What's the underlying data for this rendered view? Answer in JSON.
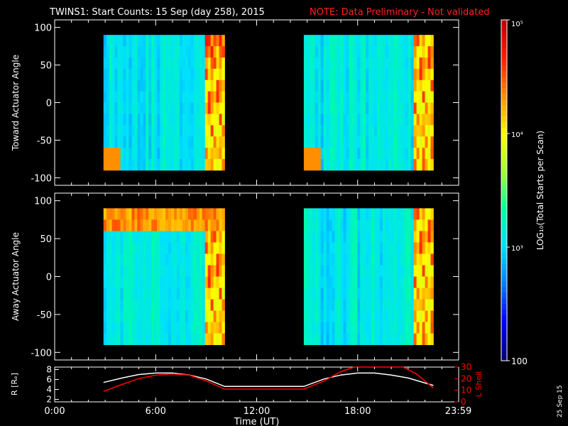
{
  "header": {
    "title": "TWINS1: Start Counts: 15 Sep (day 258), 2015",
    "note": "NOTE: Data Preliminary - Not validated"
  },
  "stamp": "25 Sep 15",
  "chart_data": [
    {
      "type": "heatmap",
      "ylabel": "Toward Actuator Angle",
      "ylim": [
        -110,
        110
      ],
      "yticks": [
        "-100",
        "-50",
        "0",
        "50",
        "100"
      ],
      "xlim_hours": [
        0,
        24
      ],
      "coverage_hours": [
        [
          2.9,
          10.1
        ],
        [
          14.8,
          22.5
        ]
      ],
      "angle_range": [
        -90,
        90
      ],
      "notes": "Mostly ~10^3 counts (cyan/blue), high (orange/red) near 8.9-10.1 h and 22.0-22.5 h; enhancement near -90 deg at start of each pass"
    },
    {
      "type": "heatmap",
      "ylabel": "Away Actuator Angle",
      "ylim": [
        -110,
        110
      ],
      "yticks": [
        "-100",
        "-50",
        "0",
        "50",
        "100"
      ],
      "xlim_hours": [
        0,
        24
      ],
      "coverage_hours": [
        [
          2.9,
          10.1
        ],
        [
          14.8,
          22.5
        ]
      ],
      "angle_range": [
        -90,
        90
      ],
      "notes": "High counts band near +75 deg in first pass; orange/red near 8.9-10.1 h and 20.8-22.5 h"
    },
    {
      "type": "colorbar",
      "title": "LOG₁₀(Total Starts per Scan)",
      "scale": "log",
      "range": [
        100,
        100000
      ],
      "tick_labels": [
        "100",
        "10³",
        "10⁴",
        "10⁵"
      ],
      "tick_values": [
        100,
        1000,
        10000,
        100000
      ],
      "colors": [
        "#00007f",
        "#0000ff",
        "#0080ff",
        "#00e0ff",
        "#00ffa0",
        "#a0ff30",
        "#ffff00",
        "#ff9000",
        "#ff2000",
        "#c00000"
      ]
    },
    {
      "type": "line",
      "xlabel": "Time (UT)",
      "x_tick_labels": [
        "0:00",
        "6:00",
        "12:00",
        "18:00",
        "23:59"
      ],
      "x_tick_hours": [
        0,
        6,
        12,
        18,
        23.98
      ],
      "left_axis": {
        "label": "R [Rₑ]",
        "ylim": [
          1.5,
          8.5
        ],
        "ticks": [
          "2",
          "4",
          "6",
          "8"
        ]
      },
      "right_axis": {
        "label": "L Shell",
        "ylim": [
          0,
          30
        ],
        "ticks": [
          "0",
          "10",
          "20",
          "30"
        ],
        "color": "#ff0000"
      },
      "series": [
        {
          "axis": "left",
          "color": "#ffffff",
          "x": [
            2.9,
            4,
            5,
            6,
            7,
            8,
            9,
            10.1,
            14.8,
            16,
            17,
            18,
            19,
            20,
            21,
            22.5
          ],
          "y": [
            5.4,
            6.3,
            7.0,
            7.3,
            7.3,
            6.9,
            6.1,
            4.6,
            4.6,
            6.1,
            6.9,
            7.3,
            7.3,
            6.9,
            6.3,
            4.8
          ]
        },
        {
          "axis": "right",
          "color": "#ff0000",
          "x": [
            2.9,
            4,
            5,
            6,
            7,
            8,
            9,
            10.1,
            14.8,
            16,
            17,
            17.8,
            20.7,
            21.5,
            22.5
          ],
          "y": [
            9,
            15,
            20,
            23,
            24,
            23,
            18,
            11,
            11,
            18,
            26,
            30,
            30,
            24,
            12
          ]
        }
      ]
    }
  ]
}
